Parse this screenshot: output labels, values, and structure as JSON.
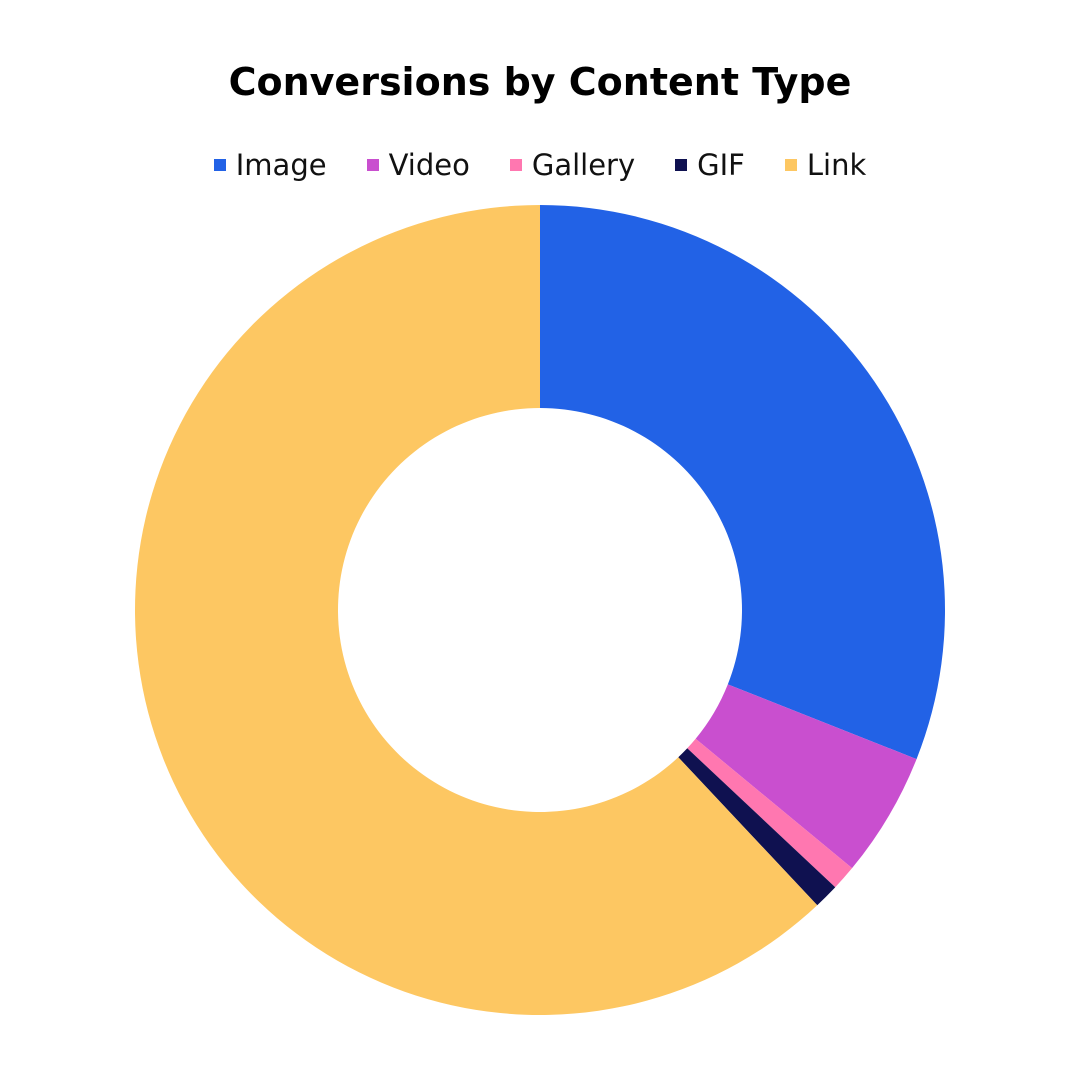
{
  "chart_data": {
    "type": "pie",
    "style": "donut",
    "title": "Conversions by Content Type",
    "legend_position": "top",
    "categories": [
      "Image",
      "Video",
      "Gallery",
      "GIF",
      "Link"
    ],
    "values": [
      31,
      5,
      1,
      1,
      62
    ],
    "unit": "percent (estimated)",
    "colors": [
      "#2262E6",
      "#C94FCF",
      "#FF77B0",
      "#0F1150",
      "#FDC762"
    ]
  }
}
